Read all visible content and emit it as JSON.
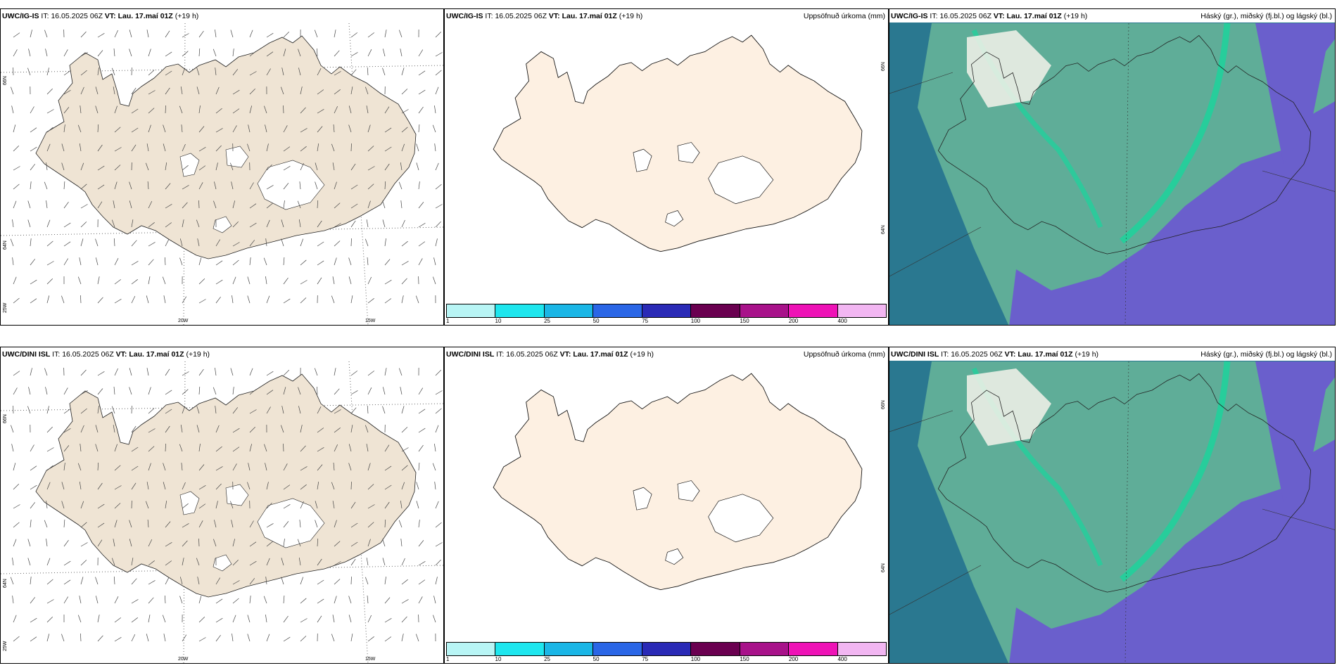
{
  "rows": [
    {
      "model": "UWC/IG-IS",
      "it_label": "IT:",
      "it_value": "16.05.2025 06Z",
      "vt_label": "VT:",
      "vt_value": "Lau. 17.maí 01Z",
      "lead": "(+19 h)"
    },
    {
      "model": "UWC/DINI ISL",
      "it_label": "IT:",
      "it_value": "16.05.2025 06Z",
      "vt_label": "VT:",
      "vt_value": "Lau. 17.maí 01Z",
      "lead": "(+19 h)"
    }
  ],
  "precip_title": "Uppsöfnuð úrkoma (mm)",
  "cloud_title": "Háský (gr.), miðský (fj.bl.) og lágský (bl.)",
  "wind_axes": {
    "lat_top": "66N",
    "lat_mid": "64N",
    "lat_bottom": "25W",
    "lon_left": "20W",
    "lon_right": "15W"
  },
  "precip_axes": {
    "lat_top": "66N",
    "lat_mid": "64N"
  },
  "precip_colorbar": {
    "ticks": [
      "1",
      "10",
      "25",
      "50",
      "75",
      "100",
      "150",
      "200",
      "400"
    ],
    "colors": [
      "#b8f5f5",
      "#1ee6ee",
      "#1ab6e6",
      "#2a66e6",
      "#2a2ab6",
      "#6a0050",
      "#a8128a",
      "#ee12b6",
      "#f2b6f2"
    ]
  },
  "colors": {
    "land_wind": "#efe4d4",
    "land_precip": "#fdf0e2",
    "ice": "#ffffff",
    "high_cloud": "#2a7890",
    "mid_cloud": "#5fad98",
    "low_cloud": "#6a5fcc",
    "front": "#19d49c"
  }
}
